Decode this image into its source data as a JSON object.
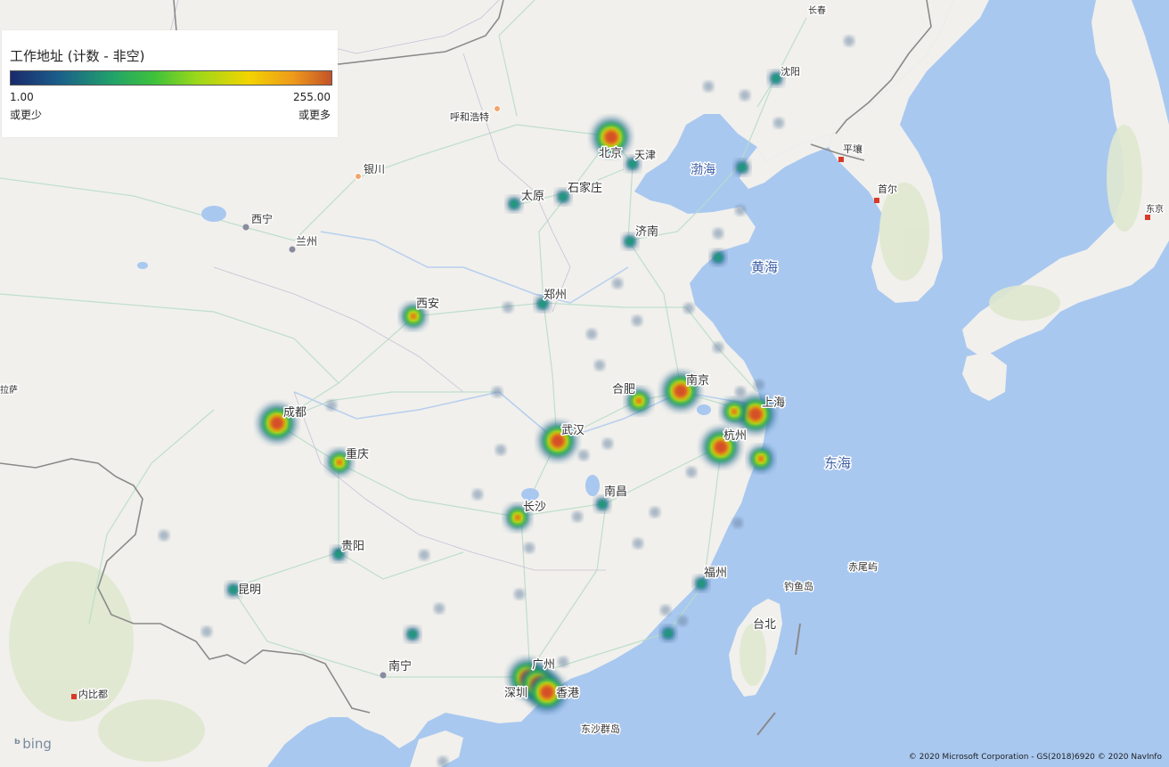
{
  "legend": {
    "title": "工作地址 (计数 - 非空)",
    "min_value": "1.00",
    "max_value": "255.00",
    "min_caption": "或更少",
    "max_caption": "或更多",
    "gradient_colors": [
      "#1a2a6c",
      "#1b5e8a",
      "#22a36a",
      "#3fc23a",
      "#9bd81a",
      "#f2d400",
      "#ee9a1a",
      "#c4522a"
    ]
  },
  "attribution": {
    "bing": "bing",
    "copyright": "© 2020 Microsoft Corporation - GS(2018)6920  © 2020 NavInfo"
  },
  "map": {
    "city_labels": [
      "长春",
      "沈阳",
      "平壤",
      "首尔",
      "东京",
      "北京",
      "天津",
      "呼和浩特",
      "银川",
      "太原",
      "石家庄",
      "渤海",
      "西宁",
      "兰州",
      "济南",
      "黄海",
      "西安",
      "郑州",
      "合肥",
      "南京",
      "上海",
      "杭州",
      "东海",
      "成都",
      "武汉",
      "拉萨",
      "重庆",
      "长沙",
      "南昌",
      "贵阳",
      "福州",
      "赤尾屿",
      "钓鱼岛",
      "昆明",
      "台北",
      "广州",
      "南宁",
      "深圳",
      "香港",
      "内比都",
      "东沙群岛"
    ],
    "heat_points": [
      {
        "name": "北京",
        "level": "high"
      },
      {
        "name": "上海",
        "level": "high"
      },
      {
        "name": "深圳",
        "level": "high"
      },
      {
        "name": "广州",
        "level": "high"
      },
      {
        "name": "香港",
        "level": "high"
      },
      {
        "name": "杭州",
        "level": "high"
      },
      {
        "name": "武汉",
        "level": "high"
      },
      {
        "name": "成都",
        "level": "high"
      },
      {
        "name": "南京",
        "level": "high"
      },
      {
        "name": "西安",
        "level": "mid"
      },
      {
        "name": "合肥",
        "level": "mid"
      },
      {
        "name": "重庆",
        "level": "mid"
      },
      {
        "name": "长沙",
        "level": "mid"
      },
      {
        "name": "苏州",
        "level": "mid"
      },
      {
        "name": "宁波",
        "level": "mid"
      },
      {
        "name": "沈阳",
        "level": "low"
      },
      {
        "name": "太原",
        "level": "low"
      },
      {
        "name": "济南",
        "level": "low"
      },
      {
        "name": "郑州",
        "level": "low"
      },
      {
        "name": "南昌",
        "level": "low"
      },
      {
        "name": "福州",
        "level": "low"
      },
      {
        "name": "昆明",
        "level": "low"
      },
      {
        "name": "天津",
        "level": "low"
      },
      {
        "name": "青岛",
        "level": "low"
      },
      {
        "name": "厦门",
        "level": "low"
      },
      {
        "name": "石家庄",
        "level": "low"
      },
      {
        "name": "大连",
        "level": "low"
      },
      {
        "name": "贵阳",
        "level": "low"
      },
      {
        "name": "南宁",
        "level": "low"
      }
    ]
  }
}
